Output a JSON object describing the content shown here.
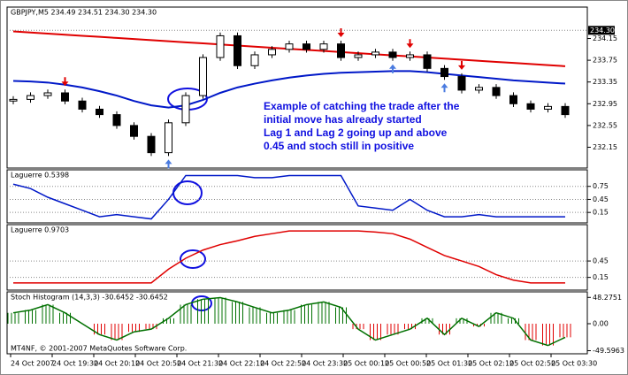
{
  "chart_data": [
    {
      "type": "candlestick",
      "title": "GBPJPY,M5  234.49 234.51 234.30 234.30",
      "ohlc": [
        [
          233.0,
          233.09,
          232.94,
          233.03
        ],
        [
          233.03,
          233.16,
          232.97,
          233.1
        ],
        [
          233.1,
          233.21,
          233.04,
          233.15
        ],
        [
          233.15,
          233.21,
          232.94,
          233.0
        ],
        [
          233.0,
          233.06,
          232.79,
          232.85
        ],
        [
          232.85,
          232.91,
          232.69,
          232.75
        ],
        [
          232.75,
          232.81,
          232.49,
          232.55
        ],
        [
          232.55,
          232.61,
          232.29,
          232.35
        ],
        [
          232.35,
          232.41,
          231.99,
          232.05
        ],
        [
          232.05,
          232.66,
          231.99,
          232.6
        ],
        [
          232.6,
          233.16,
          232.54,
          233.1
        ],
        [
          233.1,
          233.86,
          233.04,
          233.8
        ],
        [
          233.8,
          234.26,
          233.74,
          234.2
        ],
        [
          234.2,
          234.26,
          233.59,
          233.65
        ],
        [
          233.65,
          233.91,
          233.59,
          233.85
        ],
        [
          233.85,
          234.01,
          233.79,
          233.95
        ],
        [
          233.95,
          234.11,
          233.89,
          234.05
        ],
        [
          234.05,
          234.11,
          233.89,
          233.95
        ],
        [
          233.95,
          234.11,
          233.89,
          234.05
        ],
        [
          234.05,
          234.11,
          233.74,
          233.8
        ],
        [
          233.8,
          233.91,
          233.74,
          233.85
        ],
        [
          233.85,
          233.96,
          233.79,
          233.9
        ],
        [
          233.9,
          233.96,
          233.74,
          233.8
        ],
        [
          233.8,
          233.91,
          233.74,
          233.85
        ],
        [
          233.85,
          233.91,
          233.54,
          233.6
        ],
        [
          233.6,
          233.66,
          233.39,
          233.45
        ],
        [
          233.45,
          233.51,
          233.14,
          233.2
        ],
        [
          233.2,
          233.31,
          233.14,
          233.25
        ],
        [
          233.25,
          233.31,
          233.04,
          233.1
        ],
        [
          233.1,
          233.16,
          232.89,
          232.95
        ],
        [
          232.95,
          233.01,
          232.79,
          232.85
        ],
        [
          232.85,
          232.96,
          232.79,
          232.9
        ],
        [
          232.9,
          232.96,
          232.69,
          232.75
        ]
      ],
      "series": [
        {
          "color": "#e00000",
          "values": [
            234.28,
            234.26,
            234.24,
            234.22,
            234.2,
            234.18,
            234.16,
            234.14,
            234.12,
            234.1,
            234.08,
            234.06,
            234.04,
            234.02,
            234.0,
            233.98,
            233.96,
            233.94,
            233.92,
            233.9,
            233.88,
            233.86,
            233.84,
            233.82,
            233.8,
            233.78,
            233.76,
            233.74,
            233.72,
            233.7,
            233.68,
            233.66,
            233.64
          ]
        },
        {
          "color": "#0018c8",
          "values": [
            233.37,
            233.36,
            233.34,
            233.3,
            233.25,
            233.18,
            233.1,
            233.0,
            232.92,
            232.88,
            232.92,
            233.02,
            233.15,
            233.25,
            233.32,
            233.38,
            233.43,
            233.47,
            233.5,
            233.52,
            233.53,
            233.54,
            233.55,
            233.55,
            233.53,
            233.5,
            233.47,
            233.44,
            233.41,
            233.38,
            233.36,
            233.34,
            233.32
          ]
        }
      ],
      "sell_signals": [
        3,
        19,
        23,
        26
      ],
      "buy_signals": [
        9,
        22,
        25
      ],
      "ylim": [
        231.8,
        234.5
      ],
      "yticks": [
        {
          "value": 234.15,
          "label": "234.15"
        },
        233.75,
        233.35,
        232.95,
        232.55,
        232.15
      ],
      "last_price": {
        "value": 234.3,
        "label": "234.30"
      },
      "annotation": [
        "Example of catching the trade after the",
        "initial move has already started",
        "Lag 1 and Lag 2 going up and above",
        "0.45 and stoch still in positive"
      ],
      "xtick_labels": [
        "24 Oct 2007",
        "24 Oct 19:30",
        "24 Oct 20:10",
        "24 Oct 20:50",
        "24 Oct 21:30",
        "24 Oct 22:10",
        "24 Oct 22:50",
        "24 Oct 23:30",
        "25 Oct 00:10",
        "25 Oct 00:50",
        "25 Oct 01:30",
        "25 Oct 02:10",
        "25 Oct 02:50",
        "25 Oct 03:30"
      ],
      "copyright": "MT4NF, © 2001-2007 MetaQuotes Software Corp."
    },
    {
      "type": "line",
      "title": "Laguerre 0.5398",
      "color": "#0018c8",
      "values": [
        0.8,
        0.7,
        0.5,
        0.35,
        0.2,
        0.05,
        0.1,
        0.05,
        0.0,
        0.45,
        1.0,
        1.0,
        1.0,
        1.0,
        0.95,
        0.95,
        1.0,
        1.0,
        1.0,
        1.0,
        0.3,
        0.25,
        0.2,
        0.45,
        0.2,
        0.05,
        0.05,
        0.1,
        0.05,
        0.05,
        0.05,
        0.05,
        0.05
      ],
      "ylim": [
        -0.05,
        1.05
      ],
      "yticks": [
        0.15,
        0.45,
        0.75
      ],
      "grid": true
    },
    {
      "type": "line",
      "title": "Laguerre 0.9703",
      "color": "#e00000",
      "values": [
        0.05,
        0.05,
        0.05,
        0.05,
        0.05,
        0.05,
        0.05,
        0.05,
        0.05,
        0.3,
        0.5,
        0.65,
        0.75,
        0.82,
        0.9,
        0.95,
        1.0,
        1.0,
        1.0,
        1.0,
        1.0,
        0.98,
        0.95,
        0.85,
        0.7,
        0.55,
        0.45,
        0.35,
        0.2,
        0.1,
        0.05,
        0.05,
        0.05
      ],
      "ylim": [
        -0.05,
        1.05
      ],
      "yticks": [
        0.15,
        0.45
      ],
      "grid": true
    },
    {
      "type": "bar",
      "title": "Stoch Histogram (14,3,3) -30.6452 -30.6452",
      "values": [
        20,
        25,
        35,
        20,
        0,
        -20,
        -30,
        -15,
        -10,
        10,
        35,
        45,
        48,
        40,
        30,
        20,
        25,
        35,
        40,
        30,
        -10,
        -30,
        -20,
        -10,
        10,
        -20,
        10,
        -5,
        20,
        10,
        -30,
        -40,
        -25
      ],
      "positive_color": "#007000",
      "negative_color": "#e00000",
      "ylim": [
        -52,
        52
      ],
      "yticks": [
        48.2751,
        {
          "value": 0,
          "label": "0.00"
        },
        -49.5963
      ]
    }
  ]
}
